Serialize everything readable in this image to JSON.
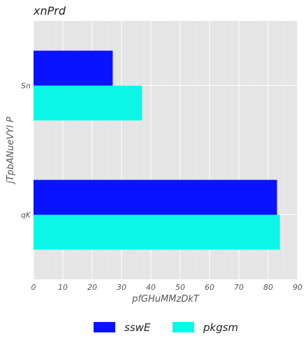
{
  "chart_data": {
    "type": "bar",
    "orientation": "horizontal",
    "title": "xnPrd",
    "xlabel": "pfGHuMMzDkT",
    "ylabel": "jTpbANueVYl P",
    "categories": [
      "Sn",
      "qK"
    ],
    "series": [
      {
        "name": "sswE",
        "values": [
          27,
          83
        ],
        "color": "#0a13ff"
      },
      {
        "name": "pkgsm",
        "values": [
          37,
          84
        ],
        "color": "#0cf7e8"
      }
    ],
    "xlim": [
      0,
      90
    ],
    "xticks": [
      "0",
      "10",
      "20",
      "30",
      "40",
      "50",
      "60",
      "70",
      "80",
      "90"
    ],
    "grid": true,
    "legend_position": "bottom-center",
    "background": "#e5e5e5"
  }
}
